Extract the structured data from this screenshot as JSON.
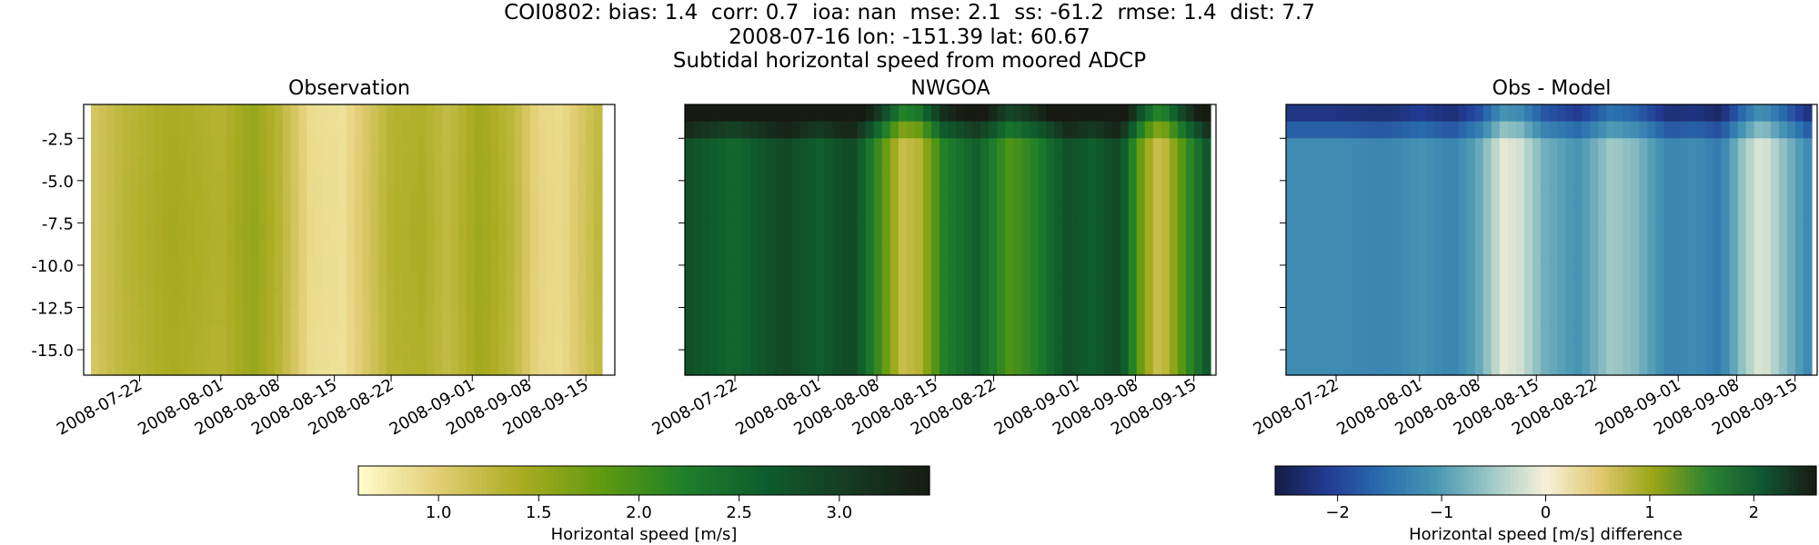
{
  "header": {
    "line1": "COI0802: bias: 1.4  corr: 0.7  ioa: nan  mse: 2.1  ss: -61.2  rmse: 1.4  dist: 7.7",
    "line2": "2008-07-16 lon: -151.39 lat: 60.67",
    "line3": "Subtidal horizontal speed from moored ADCP"
  },
  "chart_data": {
    "type": "heatmap",
    "time_start": "2008-07-16",
    "time_end": "2008-09-17",
    "x_ticks": [
      "2008-07-22",
      "2008-08-01",
      "2008-08-08",
      "2008-08-15",
      "2008-08-22",
      "2008-09-01",
      "2008-09-08",
      "2008-09-15"
    ],
    "y_ticks": [
      "-2.5",
      "-5.0",
      "-7.5",
      "-10.0",
      "-12.5",
      "-15.0"
    ],
    "ylim": [
      -16.5,
      -0.5
    ],
    "panels": [
      {
        "title": "Observation",
        "colormap": "speed",
        "clim": [
          0.6,
          3.45
        ],
        "depth_bands": [
          -1,
          -2,
          -3,
          -4,
          -5,
          -6,
          -7,
          -8,
          -9,
          -10,
          -11,
          -12,
          -13,
          -14,
          -15,
          -16
        ],
        "profile_times": [
          "2008-07-16",
          "2008-07-20",
          "2008-07-26",
          "2008-08-01",
          "2008-08-05",
          "2008-08-08",
          "2008-08-12",
          "2008-08-16",
          "2008-08-22",
          "2008-08-26",
          "2008-08-29",
          "2008-09-02",
          "2008-09-06",
          "2008-09-09",
          "2008-09-12",
          "2008-09-17"
        ],
        "profile_values": [
          1.1,
          1.3,
          1.45,
          1.35,
          1.55,
          1.35,
          0.9,
          0.85,
          1.35,
          1.4,
          1.25,
          1.5,
          1.3,
          0.95,
          0.9,
          1.3
        ]
      },
      {
        "title": "NWGOA",
        "colormap": "speed",
        "clim": [
          0.6,
          3.45
        ],
        "profile_times": [
          "2008-07-16",
          "2008-07-22",
          "2008-07-28",
          "2008-08-01",
          "2008-08-05",
          "2008-08-08",
          "2008-08-11",
          "2008-08-13",
          "2008-08-16",
          "2008-08-20",
          "2008-08-24",
          "2008-08-27",
          "2008-08-31",
          "2008-09-03",
          "2008-09-06",
          "2008-09-09",
          "2008-09-11",
          "2008-09-14",
          "2008-09-17"
        ],
        "profile_values": [
          2.8,
          2.5,
          2.9,
          2.6,
          2.9,
          2.1,
          1.2,
          1.3,
          2.2,
          2.6,
          1.9,
          2.2,
          2.8,
          2.6,
          2.9,
          1.6,
          1.1,
          2.0,
          2.8
        ],
        "surface_offset": [
          1.0,
          0.45,
          0.0
        ]
      },
      {
        "title": "Obs - Model",
        "colormap": "diff",
        "clim": [
          -2.6,
          2.6
        ],
        "profile_times": [
          "2008-07-16",
          "2008-07-22",
          "2008-07-28",
          "2008-08-01",
          "2008-08-05",
          "2008-08-08",
          "2008-08-11",
          "2008-08-13",
          "2008-08-16",
          "2008-08-20",
          "2008-08-24",
          "2008-08-27",
          "2008-08-31",
          "2008-09-03",
          "2008-09-06",
          "2008-09-09",
          "2008-09-11",
          "2008-09-14",
          "2008-09-17"
        ],
        "profile_values": [
          -1.2,
          -1.2,
          -1.3,
          -1.1,
          -1.3,
          -0.9,
          -0.1,
          -0.2,
          -0.8,
          -1.1,
          -0.5,
          -0.7,
          -1.3,
          -1.2,
          -1.4,
          -0.5,
          -0.1,
          -0.7,
          -1.3
        ],
        "surface_offset": [
          -1.0,
          -0.5,
          0.0
        ]
      }
    ],
    "colorbars": [
      {
        "label": "Horizontal speed [m/s]",
        "ticks": [
          "1.0",
          "1.5",
          "2.0",
          "2.5",
          "3.0"
        ],
        "tick_values": [
          1.0,
          1.5,
          2.0,
          2.5,
          3.0
        ],
        "range": [
          0.6,
          3.45
        ],
        "colormap": "speed"
      },
      {
        "label": "Horizontal speed [m/s] difference",
        "ticks": [
          "−2",
          "−1",
          "0",
          "1",
          "2"
        ],
        "tick_values": [
          -2,
          -1,
          0,
          1,
          2
        ],
        "range": [
          -2.6,
          2.6
        ],
        "colormap": "diff"
      }
    ],
    "colormap_stops": {
      "speed": [
        "#fffdcd",
        "#e1cd73",
        "#aaac20",
        "#5f9a10",
        "#1f7f2a",
        "#0f5c2e",
        "#163b22",
        "#171b12"
      ],
      "diff": [
        "#151d44",
        "#233c96",
        "#2a6fae",
        "#4a98b4",
        "#9fc9c6",
        "#f6f0d8",
        "#e1c870",
        "#98a415",
        "#2c8430",
        "#115632",
        "#171b12"
      ]
    }
  }
}
